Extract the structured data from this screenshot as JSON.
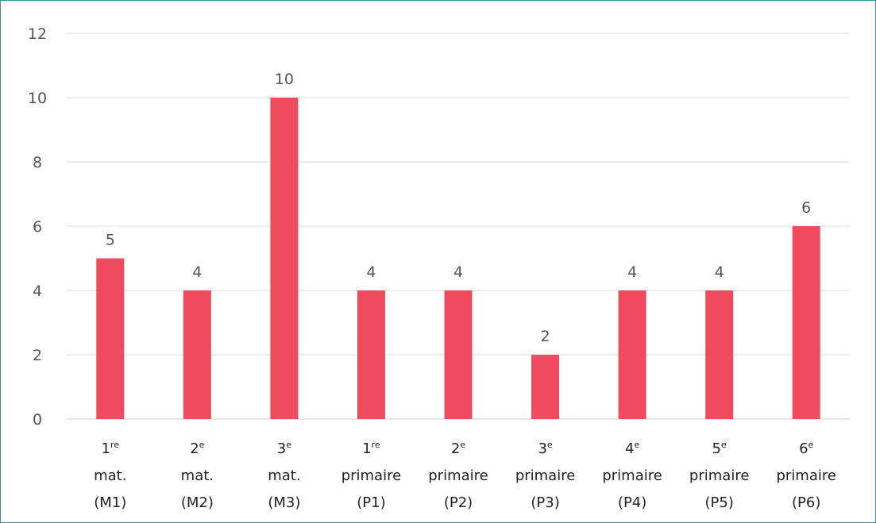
{
  "chart_data": {
    "type": "bar",
    "title": "",
    "xlabel": "",
    "ylabel": "",
    "ylim": [
      0,
      12
    ],
    "yticks": [
      "0",
      "2",
      "4",
      "6",
      "8",
      "10",
      "12"
    ],
    "grid": true,
    "legend": "none",
    "bar_color": "#ef4b5f",
    "categories": [
      {
        "num": "1",
        "sup": "re",
        "line2": "mat.",
        "line3": "(M1)"
      },
      {
        "num": "2",
        "sup": "e",
        "line2": "mat.",
        "line3": "(M2)"
      },
      {
        "num": "3",
        "sup": "e",
        "line2": "mat.",
        "line3": "(M3)"
      },
      {
        "num": "1",
        "sup": "re",
        "line2": "primaire",
        "line3": "(P1)"
      },
      {
        "num": "2",
        "sup": "e",
        "line2": "primaire",
        "line3": "(P2)"
      },
      {
        "num": "3",
        "sup": "e",
        "line2": "primaire",
        "line3": "(P3)"
      },
      {
        "num": "4",
        "sup": "e",
        "line2": "primaire",
        "line3": "(P4)"
      },
      {
        "num": "5",
        "sup": "e",
        "line2": "primaire",
        "line3": "(P5)"
      },
      {
        "num": "6",
        "sup": "e",
        "line2": "primaire",
        "line3": "(P6)"
      }
    ],
    "values": [
      5,
      4,
      10,
      4,
      4,
      2,
      4,
      4,
      6
    ],
    "data_labels": [
      "5",
      "4",
      "10",
      "4",
      "4",
      "2",
      "4",
      "4",
      "6"
    ]
  }
}
